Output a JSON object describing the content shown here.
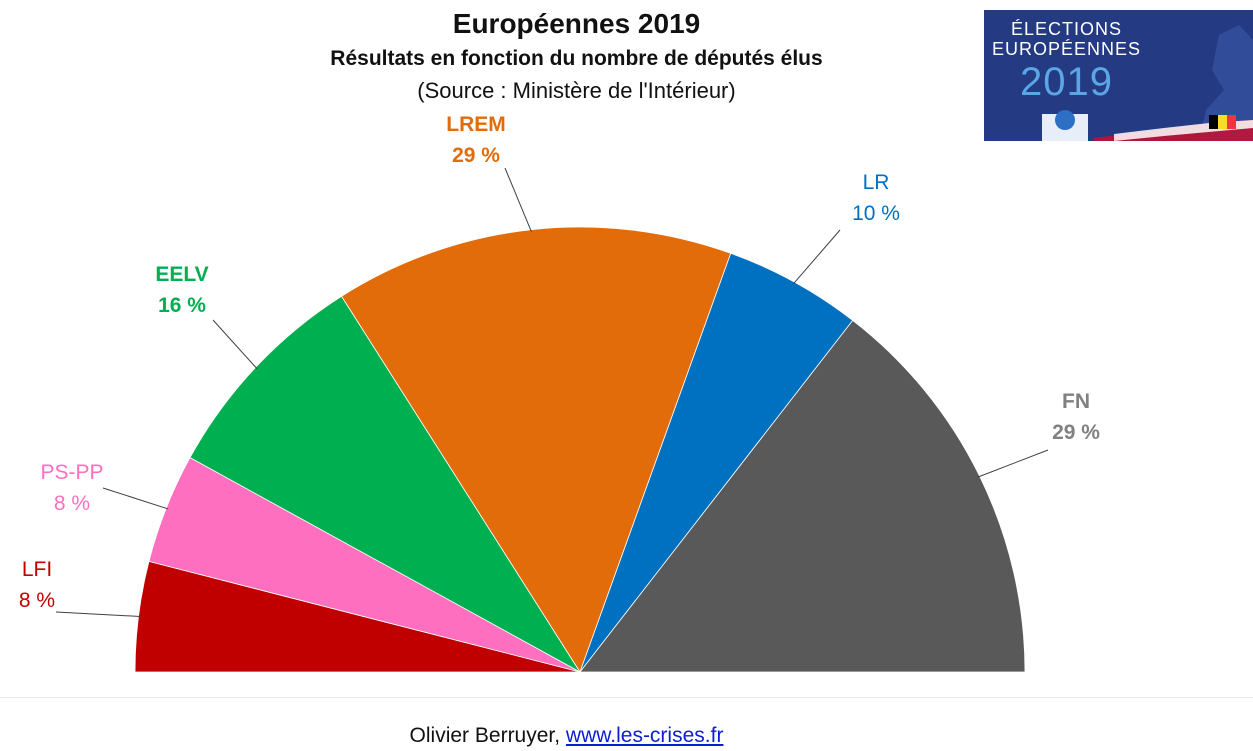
{
  "header": {
    "title": "Européennes  2019",
    "subtitle": "Résultats en fonction du nombre de députés élus",
    "source": "(Source : Ministère de l'Intérieur)"
  },
  "logo": {
    "line1": "ÉLECTIONS",
    "line2": "EUROPÉENNES",
    "year": "2019"
  },
  "chart_data": {
    "type": "pie",
    "variant": "half-donut (hemicycle)",
    "categories": [
      "LFI",
      "PS-PP",
      "EELV",
      "LREM",
      "LR",
      "FN"
    ],
    "values": [
      8,
      8,
      16,
      29,
      10,
      29
    ],
    "labels": [
      "8 %",
      "8 %",
      "16 %",
      "29 %",
      "10 %",
      "29 %"
    ],
    "colors": [
      "#c00000",
      "#ff6fc0",
      "#00b050",
      "#e36c0a",
      "#0070c0",
      "#595959"
    ],
    "label_colors": [
      "#c00000",
      "#ff6fc0",
      "#00b050",
      "#e36c0a",
      "#0070c0",
      "#808080"
    ],
    "bold": [
      false,
      false,
      true,
      true,
      false,
      true
    ]
  },
  "footer": {
    "author": "Olivier Berruyer, ",
    "link": "www.les-crises.fr"
  }
}
